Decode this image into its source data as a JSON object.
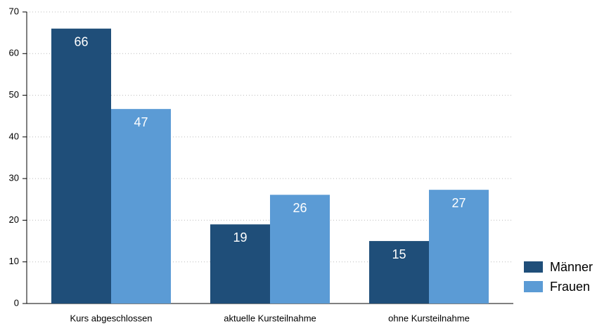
{
  "chart_data": {
    "type": "bar",
    "categories": [
      "Kurs abgeschlossen",
      "aktuelle Kursteilnahme",
      "ohne Kursteilnahme"
    ],
    "series": [
      {
        "name": "Männer",
        "color": "#1f4e79",
        "values": [
          66,
          19,
          15
        ]
      },
      {
        "name": "Frauen",
        "color": "#5b9bd5",
        "values": [
          46.7,
          26.1,
          27.3
        ],
        "value_labels": [
          "47",
          "26",
          "27"
        ]
      }
    ],
    "ylim": [
      0,
      70
    ],
    "yticks": [
      0,
      10,
      20,
      30,
      40,
      50,
      60,
      70
    ],
    "grid": true,
    "legend": "right"
  }
}
